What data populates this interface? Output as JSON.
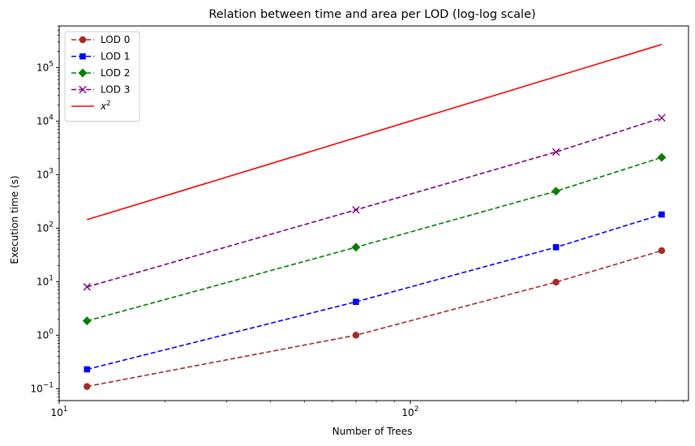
{
  "chart_data": {
    "type": "line",
    "title": "Relation between time and area per LOD (log-log scale)",
    "xlabel": "Number of Trees",
    "ylabel": "Execution time (s)",
    "xscale": "log",
    "yscale": "log",
    "xlim": [
      10,
      620
    ],
    "ylim": [
      0.06,
      600000
    ],
    "grid": false,
    "legend_position": "upper-left",
    "x_ticks": [
      {
        "value": 10,
        "base": "10",
        "exp": "1"
      },
      {
        "value": 100,
        "base": "10",
        "exp": "2"
      }
    ],
    "y_ticks": [
      {
        "value": 0.1,
        "base": "10",
        "exp": "−1"
      },
      {
        "value": 1,
        "base": "10",
        "exp": "0"
      },
      {
        "value": 10,
        "base": "10",
        "exp": "1"
      },
      {
        "value": 100,
        "base": "10",
        "exp": "2"
      },
      {
        "value": 1000,
        "base": "10",
        "exp": "3"
      },
      {
        "value": 10000,
        "base": "10",
        "exp": "4"
      },
      {
        "value": 100000,
        "base": "10",
        "exp": "5"
      }
    ],
    "x": [
      12,
      70,
      260,
      520
    ],
    "series": [
      {
        "name": "LOD 0",
        "values": [
          0.11,
          1.0,
          9.8,
          38
        ],
        "color": "#a52a2a",
        "marker": "circle",
        "dash": "dashed"
      },
      {
        "name": "LOD 1",
        "values": [
          0.23,
          4.2,
          44,
          180
        ],
        "color": "#0000ff",
        "marker": "square",
        "dash": "dashed"
      },
      {
        "name": "LOD 2",
        "values": [
          1.85,
          44,
          490,
          2100
        ],
        "color": "#008000",
        "marker": "diamond",
        "dash": "dashed"
      },
      {
        "name": "LOD 3",
        "values": [
          8,
          220,
          2650,
          11500
        ],
        "color": "#800080",
        "marker": "x",
        "dash": "dashed"
      }
    ],
    "reference_curve": {
      "name_base": "x",
      "name_exp": "2",
      "color": "#ff0000",
      "x": [
        12,
        520
      ],
      "values": [
        144,
        270400
      ]
    }
  }
}
